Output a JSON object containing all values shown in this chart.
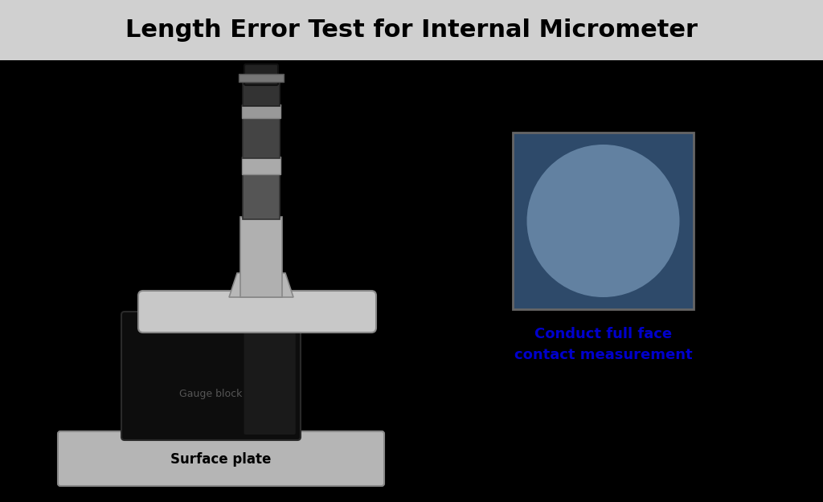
{
  "title": "Length Error Test for Internal Micrometer",
  "title_bg_color": "#d0d0d0",
  "main_bg_color": "#000000",
  "title_fontsize": 22,
  "title_font_weight": "bold",
  "gauge_block_label": "Gauge block",
  "surface_plate_label": "Surface plate",
  "annotation_text": "Conduct full face\ncontact measurement",
  "annotation_color": "#0000cc",
  "annotation_fontsize": 13,
  "surface_plate_color": "#b8b8b8",
  "surface_plate_edge": "#888888",
  "inset_bg": "#2e4a6a",
  "inset_circle_color": "#6888a8",
  "inset_border": "#666666"
}
